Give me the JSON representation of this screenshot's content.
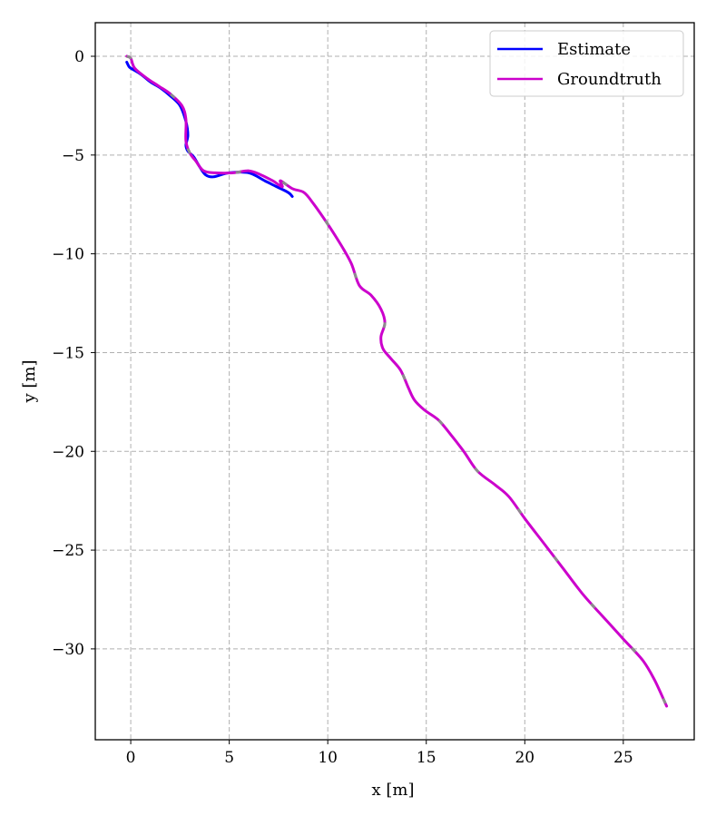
{
  "chart_data": {
    "type": "line",
    "title": "",
    "xlabel": "x [m]",
    "ylabel": "y [m]",
    "xlim": [
      -1.8,
      28.6
    ],
    "ylim": [
      -34.6,
      1.7
    ],
    "xticks": [
      0,
      5,
      10,
      15,
      20,
      25
    ],
    "yticks": [
      0,
      -5,
      -10,
      -15,
      -20,
      -25,
      -30
    ],
    "xtick_labels": [
      "0",
      "5",
      "10",
      "15",
      "20",
      "25"
    ],
    "ytick_labels": [
      "0",
      "−5",
      "−10",
      "−15",
      "−20",
      "−25",
      "−30"
    ],
    "grid": true,
    "legend_position": "top-right",
    "series": [
      {
        "name": "Estimate",
        "color": "#0000ff",
        "x": [
          -0.2,
          -0.1,
          0.0,
          0.5,
          1.0,
          1.5,
          2.0,
          2.5,
          2.8,
          2.9,
          2.8,
          2.9,
          3.2,
          3.5,
          3.8,
          4.2,
          5.0,
          6.0,
          6.8,
          7.4,
          8.0,
          8.2
        ],
        "y": [
          -0.3,
          -0.5,
          -0.6,
          -0.9,
          -1.3,
          -1.6,
          -2.0,
          -2.5,
          -3.3,
          -4.0,
          -4.5,
          -4.8,
          -5.1,
          -5.6,
          -6.0,
          -6.1,
          -5.9,
          -5.9,
          -6.3,
          -6.6,
          -6.9,
          -7.1
        ]
      },
      {
        "name": "Groundtruth",
        "color": "#cc00cc",
        "x": [
          -0.2,
          0.0,
          0.2,
          0.8,
          1.4,
          2.0,
          2.6,
          2.8,
          2.8,
          3.0,
          3.3,
          3.7,
          4.3,
          5.2,
          6.0,
          6.6,
          7.2,
          7.5,
          7.7,
          7.6,
          8.2,
          8.8,
          9.3,
          10.0,
          10.7,
          11.2,
          11.6,
          12.2,
          12.7,
          12.9,
          12.7,
          12.8,
          13.2,
          13.7,
          14.1,
          14.4,
          14.9,
          15.6,
          16.2,
          16.9,
          17.6,
          18.5,
          19.2,
          20.0,
          21.0,
          22.0,
          23.0,
          24.0,
          25.0,
          26.0,
          26.6,
          27.2
        ],
        "y": [
          0.0,
          -0.1,
          -0.6,
          -1.1,
          -1.5,
          -1.9,
          -2.5,
          -3.2,
          -4.3,
          -4.9,
          -5.3,
          -5.8,
          -5.9,
          -5.9,
          -5.8,
          -6.0,
          -6.3,
          -6.5,
          -6.6,
          -6.3,
          -6.7,
          -6.9,
          -7.5,
          -8.5,
          -9.6,
          -10.5,
          -11.6,
          -12.1,
          -12.8,
          -13.5,
          -14.2,
          -14.8,
          -15.3,
          -15.9,
          -16.8,
          -17.4,
          -17.9,
          -18.4,
          -19.1,
          -20.0,
          -21.0,
          -21.7,
          -22.3,
          -23.4,
          -24.7,
          -26.0,
          -27.3,
          -28.4,
          -29.5,
          -30.6,
          -31.6,
          -32.9
        ]
      }
    ]
  }
}
